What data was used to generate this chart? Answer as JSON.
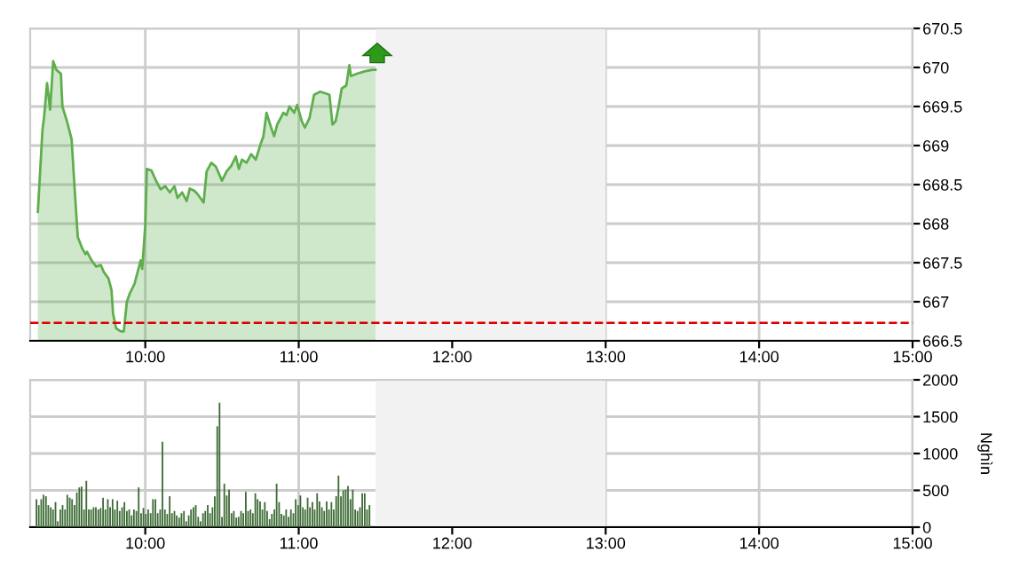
{
  "chart_data": [
    {
      "type": "area",
      "xlim": [
        9.25,
        15
      ],
      "xticks": [
        {
          "value": 10,
          "label": "10:00"
        },
        {
          "value": 11,
          "label": "11:00"
        },
        {
          "value": 12,
          "label": "12:00"
        },
        {
          "value": 13,
          "label": "13:00"
        },
        {
          "value": 14,
          "label": "14:00"
        },
        {
          "value": 15,
          "label": "15:00"
        }
      ],
      "ylim": [
        666.5,
        670.5
      ],
      "yticks": [
        666.5,
        667,
        667.5,
        668,
        668.5,
        669,
        669.5,
        670,
        670.5
      ],
      "grid": true,
      "x": [
        9.3,
        9.33,
        9.34,
        9.36,
        9.38,
        9.4,
        9.42,
        9.45,
        9.46,
        9.49,
        9.52,
        9.54,
        9.56,
        9.59,
        9.61,
        9.62,
        9.65,
        9.68,
        9.71,
        9.73,
        9.76,
        9.78,
        9.79,
        9.81,
        9.84,
        9.86,
        9.88,
        9.9,
        9.93,
        9.97,
        9.98,
        10.0,
        10.01,
        10.04,
        10.07,
        10.1,
        10.13,
        10.16,
        10.19,
        10.21,
        10.24,
        10.27,
        10.29,
        10.32,
        10.34,
        10.38,
        10.4,
        10.43,
        10.46,
        10.5,
        10.53,
        10.56,
        10.59,
        10.61,
        10.63,
        10.66,
        10.69,
        10.72,
        10.75,
        10.77,
        10.79,
        10.82,
        10.84,
        10.86,
        10.9,
        10.92,
        10.94,
        10.97,
        10.99,
        11.02,
        11.04,
        11.07,
        11.1,
        11.14,
        11.17,
        11.2,
        11.22,
        11.24,
        11.26,
        11.28,
        11.31,
        11.33,
        11.34,
        11.38,
        11.43,
        11.48,
        11.5
      ],
      "series": [
        {
          "color": "#5fae4e",
          "values": [
            668.15,
            669.2,
            669.35,
            669.8,
            669.46,
            670.08,
            669.97,
            669.92,
            669.5,
            669.31,
            669.08,
            668.44,
            667.83,
            667.68,
            667.61,
            667.64,
            667.53,
            667.45,
            667.47,
            667.38,
            667.3,
            667.15,
            666.85,
            666.66,
            666.62,
            666.62,
            667.0,
            667.11,
            667.23,
            667.53,
            667.42,
            667.98,
            668.7,
            668.68,
            668.55,
            668.44,
            668.48,
            668.4,
            668.48,
            668.33,
            668.4,
            668.29,
            668.45,
            668.42,
            668.38,
            668.27,
            668.67,
            668.78,
            668.73,
            668.55,
            668.67,
            668.74,
            668.86,
            668.7,
            668.82,
            668.78,
            668.89,
            668.82,
            669.01,
            669.12,
            669.42,
            669.23,
            669.12,
            669.27,
            669.42,
            669.39,
            669.5,
            669.42,
            669.52,
            669.31,
            669.23,
            669.35,
            669.65,
            669.69,
            669.67,
            669.65,
            669.27,
            669.31,
            669.5,
            669.73,
            669.77,
            670.03,
            669.89,
            669.92,
            669.95,
            669.97,
            669.97
          ]
        }
      ],
      "ref_lines": [
        {
          "axis": "y",
          "value": 666.73,
          "color": "#dd0000",
          "line_style": "dashed"
        }
      ],
      "bands": [
        {
          "axis": "x",
          "from": 11.5,
          "to": 13,
          "color": "#f2f2f2"
        }
      ]
    },
    {
      "type": "bar",
      "xlim": [
        9.25,
        15
      ],
      "xticks": [
        {
          "value": 10,
          "label": "10:00"
        },
        {
          "value": 11,
          "label": "11:00"
        },
        {
          "value": 12,
          "label": "12:00"
        },
        {
          "value": 13,
          "label": "13:00"
        },
        {
          "value": 14,
          "label": "14:00"
        },
        {
          "value": 15,
          "label": "15:00"
        }
      ],
      "ylim": [
        0,
        2000
      ],
      "yticks": [
        0,
        500,
        1000,
        1500,
        2000
      ],
      "ylabel": "Nghìn",
      "grid": true,
      "x": [
        9.291,
        9.306,
        9.322,
        9.337,
        9.353,
        9.368,
        9.384,
        9.399,
        9.415,
        9.43,
        9.446,
        9.461,
        9.477,
        9.492,
        9.508,
        9.523,
        9.539,
        9.554,
        9.57,
        9.585,
        9.601,
        9.616,
        9.632,
        9.647,
        9.663,
        9.678,
        9.694,
        9.709,
        9.725,
        9.74,
        9.756,
        9.771,
        9.787,
        9.802,
        9.818,
        9.833,
        9.849,
        9.864,
        9.88,
        9.895,
        9.911,
        9.926,
        9.942,
        9.957,
        9.973,
        9.988,
        10.004,
        10.019,
        10.035,
        10.05,
        10.066,
        10.081,
        10.097,
        10.112,
        10.128,
        10.143,
        10.159,
        10.174,
        10.19,
        10.205,
        10.221,
        10.236,
        10.252,
        10.267,
        10.283,
        10.298,
        10.314,
        10.329,
        10.345,
        10.36,
        10.376,
        10.391,
        10.407,
        10.422,
        10.438,
        10.453,
        10.469,
        10.484,
        10.5,
        10.515,
        10.531,
        10.546,
        10.562,
        10.577,
        10.593,
        10.608,
        10.624,
        10.639,
        10.655,
        10.67,
        10.686,
        10.701,
        10.717,
        10.732,
        10.748,
        10.763,
        10.779,
        10.794,
        10.81,
        10.825,
        10.841,
        10.856,
        10.872,
        10.887,
        10.903,
        10.918,
        10.934,
        10.949,
        10.965,
        10.98,
        10.996,
        11.011,
        11.027,
        11.042,
        11.058,
        11.073,
        11.089,
        11.104,
        11.12,
        11.135,
        11.151,
        11.166,
        11.182,
        11.197,
        11.213,
        11.228,
        11.244,
        11.259,
        11.275,
        11.29,
        11.306,
        11.321,
        11.337,
        11.352,
        11.368,
        11.383,
        11.399,
        11.414,
        11.43,
        11.445,
        11.461
      ],
      "series": [
        {
          "color": "#3d6b35",
          "values": [
            380,
            300,
            380,
            440,
            420,
            300,
            270,
            240,
            340,
            80,
            240,
            300,
            240,
            440,
            400,
            380,
            300,
            470,
            540,
            550,
            240,
            630,
            240,
            240,
            270,
            270,
            240,
            260,
            400,
            240,
            380,
            270,
            380,
            240,
            360,
            220,
            270,
            340,
            220,
            240,
            160,
            240,
            220,
            540,
            190,
            260,
            180,
            240,
            190,
            380,
            380,
            190,
            240,
            1160,
            240,
            180,
            420,
            190,
            220,
            160,
            130,
            190,
            220,
            80,
            160,
            240,
            270,
            300,
            140,
            80,
            190,
            220,
            300,
            190,
            270,
            420,
            1370,
            1690,
            140,
            590,
            430,
            510,
            190,
            220,
            130,
            140,
            220,
            190,
            480,
            220,
            240,
            190,
            460,
            380,
            350,
            240,
            340,
            220,
            110,
            180,
            240,
            590,
            340,
            180,
            160,
            240,
            140,
            240,
            190,
            380,
            300,
            430,
            270,
            240,
            400,
            270,
            340,
            240,
            460,
            350,
            270,
            220,
            350,
            240,
            340,
            240,
            420,
            700,
            420,
            500,
            510,
            560,
            380,
            510,
            240,
            220,
            270,
            460,
            460,
            240,
            300
          ]
        }
      ],
      "bands": [
        {
          "axis": "x",
          "from": 11.5,
          "to": 13,
          "color": "#f2f2f2"
        }
      ]
    }
  ]
}
